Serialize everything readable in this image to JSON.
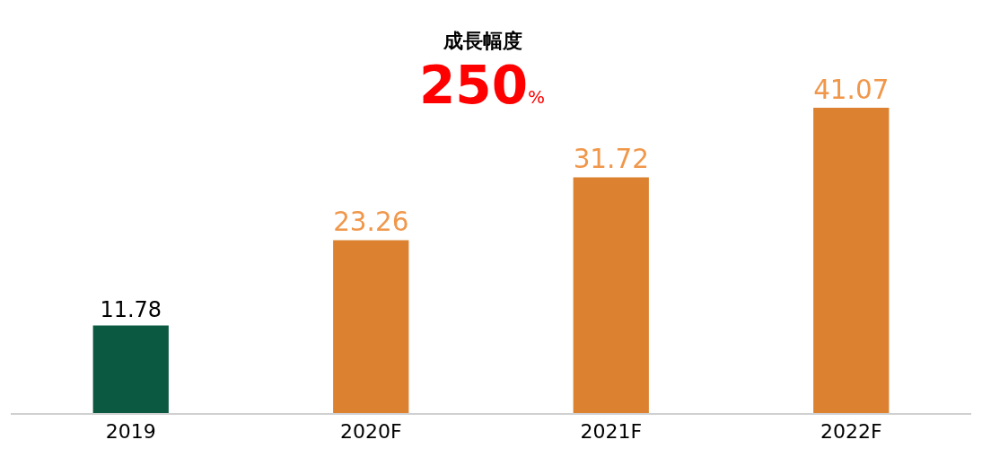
{
  "chart_data": {
    "type": "bar",
    "categories": [
      "2019",
      "2020F",
      "2021F",
      "2022F"
    ],
    "values": [
      11.78,
      23.26,
      31.72,
      41.07
    ],
    "colors": [
      "#0b5940",
      "#db8130",
      "#db8130",
      "#db8130"
    ],
    "data_labels": true,
    "annotations": [
      "成長幅度",
      "250%"
    ]
  }
}
